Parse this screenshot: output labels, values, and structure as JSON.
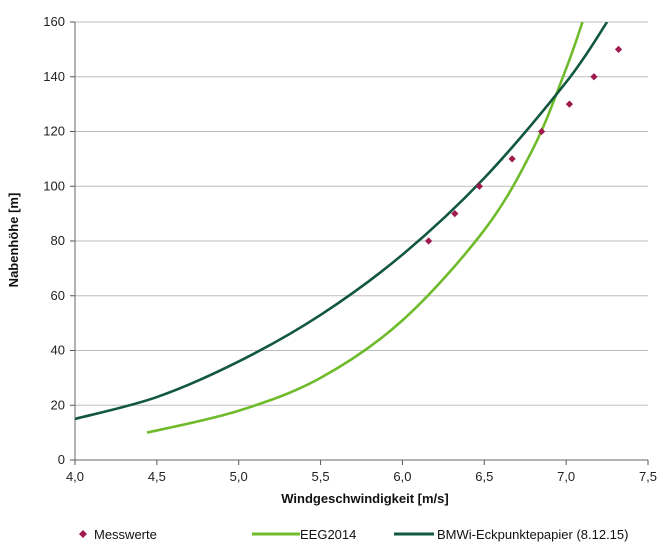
{
  "chart_data": {
    "type": "line",
    "title": "",
    "xlabel": "Windgeschwindigkeit [m/s]",
    "ylabel": "Nabenhöhe  [m]",
    "xlim": [
      4.0,
      7.5
    ],
    "ylim": [
      0,
      160
    ],
    "x_ticks": [
      "4,0",
      "4,5",
      "5,0",
      "5,5",
      "6,0",
      "6,5",
      "7,0",
      "7,5"
    ],
    "y_ticks": [
      "0",
      "20",
      "40",
      "60",
      "80",
      "100",
      "120",
      "140",
      "160"
    ],
    "x_tick_values": [
      4.0,
      4.5,
      5.0,
      5.5,
      6.0,
      6.5,
      7.0,
      7.5
    ],
    "y_tick_values": [
      0,
      20,
      40,
      60,
      80,
      100,
      120,
      140,
      160
    ],
    "grid": "horizontal",
    "legend_position": "bottom",
    "series": [
      {
        "name": "Messwerte",
        "kind": "scatter",
        "color": "#a0194f",
        "points": [
          [
            6.16,
            80
          ],
          [
            6.32,
            90
          ],
          [
            6.47,
            100
          ],
          [
            6.67,
            110
          ],
          [
            6.85,
            120
          ],
          [
            7.02,
            130
          ],
          [
            7.17,
            140
          ],
          [
            7.32,
            150
          ]
        ]
      },
      {
        "name": "EEG2014",
        "kind": "line",
        "color": "#6fbb2b",
        "points": [
          [
            4.44,
            10
          ],
          [
            5.0,
            18
          ],
          [
            5.5,
            30
          ],
          [
            6.0,
            51
          ],
          [
            6.5,
            84
          ],
          [
            6.8,
            114
          ],
          [
            7.0,
            143
          ],
          [
            7.1,
            160
          ]
        ]
      },
      {
        "name": "BMWi-Eckpunktepapier (8.12.15)",
        "kind": "line",
        "color": "#12573f",
        "points": [
          [
            4.0,
            15
          ],
          [
            4.5,
            23
          ],
          [
            5.0,
            36
          ],
          [
            5.5,
            53
          ],
          [
            6.0,
            75
          ],
          [
            6.5,
            103
          ],
          [
            7.0,
            138
          ],
          [
            7.25,
            160
          ]
        ]
      }
    ]
  }
}
